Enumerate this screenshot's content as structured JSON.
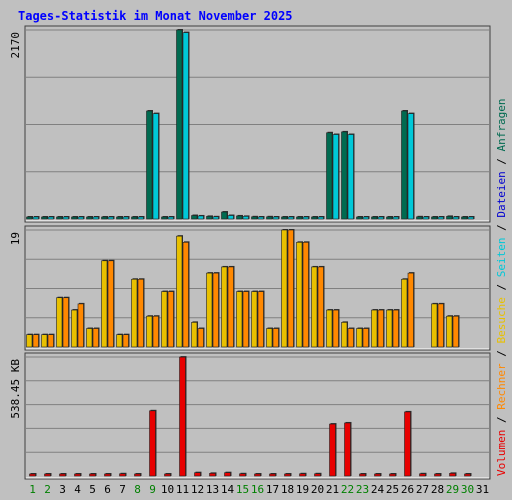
{
  "title": "Tages-Statistik im Monat November 2025",
  "colors": {
    "background": "#c0c0c0",
    "title": "#0000ff",
    "grid": "#808080",
    "anfragen": "#006a50",
    "dateien": "#0000d0",
    "seiten": "#00c8d8",
    "besuche": "#e8c000",
    "rechner": "#ff8800",
    "volumen": "#e80000",
    "weekend_label": "#008000",
    "weekday_label": "#000000"
  },
  "legend_right": {
    "top": {
      "parts": [
        "Anfragen",
        "Dateien",
        "Seiten",
        "Besuche",
        "Rechner",
        "Volumen"
      ],
      "separator": " / "
    }
  },
  "chart_data": [
    {
      "type": "bar",
      "panel": "hits",
      "max_label": "2170",
      "ylim": [
        0,
        2170
      ],
      "grid": true,
      "categories": [
        "1",
        "2",
        "3",
        "4",
        "5",
        "6",
        "7",
        "8",
        "9",
        "10",
        "11",
        "12",
        "13",
        "14",
        "15",
        "16",
        "17",
        "18",
        "19",
        "20",
        "21",
        "22",
        "23",
        "24",
        "25",
        "26",
        "27",
        "28",
        "29",
        "30",
        "31"
      ],
      "weekend_days": [
        "1",
        "2",
        "8",
        "9",
        "15",
        "16",
        "22",
        "23",
        "29",
        "30"
      ],
      "series": [
        {
          "name": "Anfragen",
          "values": [
            10,
            10,
            10,
            10,
            10,
            10,
            20,
            10,
            1240,
            10,
            2170,
            40,
            30,
            80,
            35,
            25,
            25,
            10,
            20,
            20,
            990,
            1000,
            10,
            10,
            10,
            1240,
            25,
            10,
            30,
            10,
            0
          ]
        },
        {
          "name": "Seiten",
          "values": [
            10,
            10,
            10,
            10,
            10,
            10,
            20,
            10,
            1210,
            10,
            2140,
            35,
            25,
            40,
            30,
            20,
            20,
            10,
            15,
            15,
            970,
            970,
            10,
            10,
            10,
            1210,
            20,
            10,
            20,
            10,
            0
          ]
        }
      ]
    },
    {
      "type": "bar",
      "panel": "visits",
      "max_label": "19",
      "ylim": [
        0,
        19
      ],
      "grid": true,
      "categories": [
        "1",
        "2",
        "3",
        "4",
        "5",
        "6",
        "7",
        "8",
        "9",
        "10",
        "11",
        "12",
        "13",
        "14",
        "15",
        "16",
        "17",
        "18",
        "19",
        "20",
        "21",
        "22",
        "23",
        "24",
        "25",
        "26",
        "27",
        "28",
        "29",
        "30",
        "31"
      ],
      "series": [
        {
          "name": "Besuche",
          "values": [
            2,
            2,
            8,
            6,
            3,
            14,
            2,
            11,
            5,
            9,
            18,
            4,
            12,
            13,
            9,
            9,
            3,
            19,
            17,
            13,
            6,
            4,
            3,
            6,
            6,
            11,
            0,
            7,
            5,
            0,
            0
          ]
        },
        {
          "name": "Rechner",
          "values": [
            2,
            2,
            8,
            7,
            3,
            14,
            2,
            11,
            5,
            9,
            17,
            3,
            12,
            13,
            9,
            9,
            3,
            19,
            17,
            13,
            6,
            3,
            3,
            6,
            6,
            12,
            0,
            7,
            5,
            0,
            0
          ]
        }
      ]
    },
    {
      "type": "bar",
      "panel": "volume",
      "max_label": "538.45 KB",
      "ylim": [
        0,
        538.45
      ],
      "grid": true,
      "categories": [
        "1",
        "2",
        "3",
        "4",
        "5",
        "6",
        "7",
        "8",
        "9",
        "10",
        "11",
        "12",
        "13",
        "14",
        "15",
        "16",
        "17",
        "18",
        "19",
        "20",
        "21",
        "22",
        "23",
        "24",
        "25",
        "26",
        "27",
        "28",
        "29",
        "30",
        "31"
      ],
      "series": [
        {
          "name": "Volumen",
          "values": [
            5,
            5,
            5,
            5,
            5,
            5,
            10,
            5,
            295,
            5,
            538,
            15,
            12,
            15,
            10,
            5,
            5,
            5,
            10,
            10,
            235,
            240,
            5,
            5,
            5,
            290,
            10,
            5,
            12,
            5,
            0
          ]
        }
      ]
    }
  ]
}
